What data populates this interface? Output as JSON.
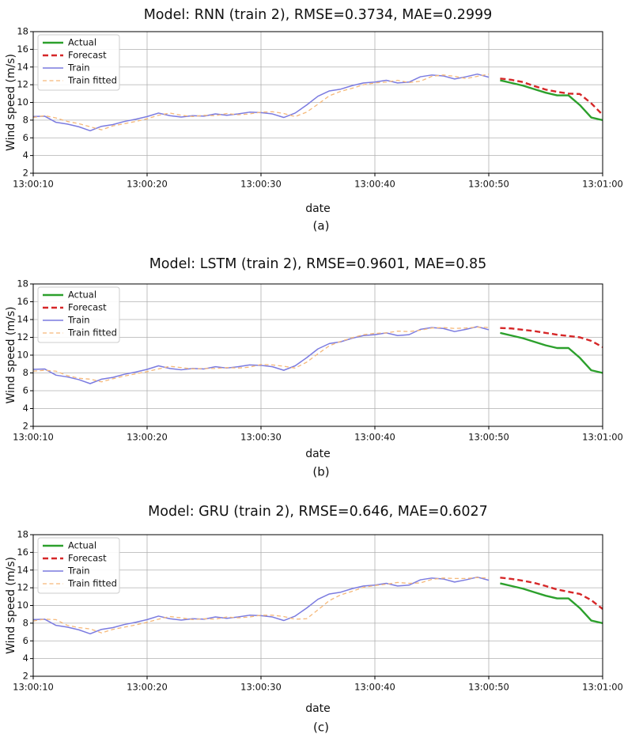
{
  "chart_data": [
    {
      "type": "line",
      "title": "Model: RNN (train 2), RMSE=0.3734, MAE=0.2999",
      "xlabel": "date",
      "ylabel": "Wind speed (m/s)",
      "caption": "(a)",
      "xlim": [
        10,
        60
      ],
      "ylim": [
        2,
        18
      ],
      "xticks": [
        10,
        20,
        30,
        40,
        50,
        60
      ],
      "xtick_labels": [
        "13:00:10",
        "13:00:20",
        "13:00:30",
        "13:00:40",
        "13:00:50",
        "13:01:00"
      ],
      "yticks": [
        2,
        4,
        6,
        8,
        10,
        12,
        14,
        16,
        18
      ],
      "legend_position": "upper-left",
      "series": [
        {
          "name": "Actual",
          "color": "#2ca02c",
          "style": "solid-thick",
          "x": [
            51,
            52,
            53,
            54,
            55,
            56,
            57,
            58,
            59,
            60
          ],
          "y": [
            12.5,
            12.2,
            11.9,
            11.5,
            11.1,
            10.8,
            10.8,
            9.7,
            8.3,
            8.0
          ]
        },
        {
          "name": "Forecast",
          "color": "#d62728",
          "style": "dashed-thick",
          "x": [
            51,
            52,
            53,
            54,
            55,
            56,
            57,
            58,
            59,
            60
          ],
          "y": [
            12.7,
            12.55,
            12.3,
            11.85,
            11.45,
            11.2,
            11.0,
            10.95,
            9.9,
            8.6
          ]
        },
        {
          "name": "Train",
          "color": "#7b7be0",
          "style": "solid-thin",
          "x": [
            10,
            11,
            12,
            13,
            14,
            15,
            16,
            17,
            18,
            19,
            20,
            21,
            22,
            23,
            24,
            25,
            26,
            27,
            28,
            29,
            30,
            31,
            32,
            33,
            34,
            35,
            36,
            37,
            38,
            39,
            40,
            41,
            42,
            43,
            44,
            45,
            46,
            47,
            48,
            49,
            50
          ],
          "y": [
            8.4,
            8.45,
            7.75,
            7.55,
            7.25,
            6.8,
            7.3,
            7.5,
            7.85,
            8.1,
            8.4,
            8.8,
            8.5,
            8.35,
            8.5,
            8.45,
            8.7,
            8.55,
            8.7,
            8.9,
            8.85,
            8.7,
            8.3,
            8.8,
            9.7,
            10.7,
            11.3,
            11.5,
            11.9,
            12.2,
            12.3,
            12.5,
            12.2,
            12.3,
            12.9,
            13.1,
            13.0,
            12.65,
            12.9,
            13.2,
            12.85
          ]
        },
        {
          "name": "Train fitted",
          "color": "#f5b879",
          "style": "dashed-thin",
          "x": [
            10,
            11,
            12,
            13,
            14,
            15,
            16,
            17,
            18,
            19,
            20,
            21,
            22,
            23,
            24,
            25,
            26,
            27,
            28,
            29,
            30,
            31,
            32,
            33,
            34,
            35,
            36,
            37,
            38,
            39,
            40,
            41,
            42,
            43,
            44,
            45,
            46,
            47,
            48,
            49,
            50
          ],
          "y": [
            8.3,
            8.5,
            8.25,
            7.85,
            7.6,
            7.25,
            6.9,
            7.35,
            7.6,
            7.85,
            8.15,
            8.55,
            8.8,
            8.55,
            8.4,
            8.55,
            8.5,
            8.75,
            8.6,
            8.7,
            8.9,
            8.95,
            8.75,
            8.4,
            8.9,
            9.8,
            10.75,
            11.25,
            11.6,
            12.0,
            12.2,
            12.3,
            12.5,
            12.25,
            12.4,
            12.95,
            13.1,
            12.95,
            12.7,
            12.95,
            13.2
          ]
        }
      ]
    },
    {
      "type": "line",
      "title": "Model: LSTM (train 2), RMSE=0.9601, MAE=0.85",
      "xlabel": "date",
      "ylabel": "Wind speed (m/s)",
      "caption": "(b)",
      "xlim": [
        10,
        60
      ],
      "ylim": [
        2,
        18
      ],
      "xticks": [
        10,
        20,
        30,
        40,
        50,
        60
      ],
      "xtick_labels": [
        "13:00:10",
        "13:00:20",
        "13:00:30",
        "13:00:40",
        "13:00:50",
        "13:01:00"
      ],
      "yticks": [
        2,
        4,
        6,
        8,
        10,
        12,
        14,
        16,
        18
      ],
      "legend_position": "upper-left",
      "series": [
        {
          "name": "Actual",
          "color": "#2ca02c",
          "style": "solid-thick",
          "x": [
            51,
            52,
            53,
            54,
            55,
            56,
            57,
            58,
            59,
            60
          ],
          "y": [
            12.5,
            12.2,
            11.9,
            11.5,
            11.1,
            10.8,
            10.8,
            9.7,
            8.3,
            8.0
          ]
        },
        {
          "name": "Forecast",
          "color": "#d62728",
          "style": "dashed-thick",
          "x": [
            51,
            52,
            53,
            54,
            55,
            56,
            57,
            58,
            59,
            60
          ],
          "y": [
            13.05,
            13.0,
            12.85,
            12.7,
            12.5,
            12.3,
            12.15,
            12.0,
            11.6,
            10.9
          ]
        },
        {
          "name": "Train",
          "color": "#7b7be0",
          "style": "solid-thin",
          "x": [
            10,
            11,
            12,
            13,
            14,
            15,
            16,
            17,
            18,
            19,
            20,
            21,
            22,
            23,
            24,
            25,
            26,
            27,
            28,
            29,
            30,
            31,
            32,
            33,
            34,
            35,
            36,
            37,
            38,
            39,
            40,
            41,
            42,
            43,
            44,
            45,
            46,
            47,
            48,
            49,
            50
          ],
          "y": [
            8.4,
            8.45,
            7.75,
            7.55,
            7.25,
            6.8,
            7.3,
            7.5,
            7.85,
            8.1,
            8.4,
            8.8,
            8.5,
            8.35,
            8.5,
            8.45,
            8.7,
            8.55,
            8.7,
            8.9,
            8.85,
            8.7,
            8.3,
            8.8,
            9.7,
            10.7,
            11.3,
            11.5,
            11.9,
            12.2,
            12.3,
            12.5,
            12.2,
            12.3,
            12.9,
            13.1,
            13.0,
            12.65,
            12.9,
            13.2,
            12.85
          ]
        },
        {
          "name": "Train fitted",
          "color": "#f5b879",
          "style": "dashed-thin",
          "x": [
            10,
            11,
            12,
            13,
            14,
            15,
            16,
            17,
            18,
            19,
            20,
            21,
            22,
            23,
            24,
            25,
            26,
            27,
            28,
            29,
            30,
            31,
            32,
            33,
            34,
            35,
            36,
            37,
            38,
            39,
            40,
            41,
            42,
            43,
            44,
            45,
            46,
            47,
            48,
            49,
            50
          ],
          "y": [
            8.2,
            8.3,
            8.2,
            7.7,
            7.4,
            7.3,
            7.0,
            7.35,
            7.65,
            7.9,
            8.15,
            8.45,
            8.75,
            8.6,
            8.45,
            8.5,
            8.5,
            8.6,
            8.55,
            8.65,
            8.95,
            8.9,
            8.75,
            8.55,
            9.2,
            10.15,
            11.05,
            11.55,
            11.95,
            12.3,
            12.45,
            12.5,
            12.7,
            12.65,
            12.8,
            13.05,
            13.1,
            13.0,
            13.05,
            13.15,
            13.1
          ]
        }
      ]
    },
    {
      "type": "line",
      "title": "Model: GRU (train 2), RMSE=0.646, MAE=0.6027",
      "xlabel": "date",
      "ylabel": "Wind speed (m/s)",
      "caption": "(c)",
      "xlim": [
        10,
        60
      ],
      "ylim": [
        2,
        18
      ],
      "xticks": [
        10,
        20,
        30,
        40,
        50,
        60
      ],
      "xtick_labels": [
        "13:00:10",
        "13:00:20",
        "13:00:30",
        "13:00:40",
        "13:00:50",
        "13:01:00"
      ],
      "yticks": [
        2,
        4,
        6,
        8,
        10,
        12,
        14,
        16,
        18
      ],
      "legend_position": "upper-left",
      "series": [
        {
          "name": "Actual",
          "color": "#2ca02c",
          "style": "solid-thick",
          "x": [
            51,
            52,
            53,
            54,
            55,
            56,
            57,
            58,
            59,
            60
          ],
          "y": [
            12.5,
            12.2,
            11.9,
            11.5,
            11.1,
            10.8,
            10.8,
            9.7,
            8.3,
            8.0
          ]
        },
        {
          "name": "Forecast",
          "color": "#d62728",
          "style": "dashed-thick",
          "x": [
            51,
            52,
            53,
            54,
            55,
            56,
            57,
            58,
            59,
            60
          ],
          "y": [
            13.15,
            13.0,
            12.8,
            12.55,
            12.2,
            11.8,
            11.55,
            11.3,
            10.6,
            9.6
          ]
        },
        {
          "name": "Train",
          "color": "#7b7be0",
          "style": "solid-thin",
          "x": [
            10,
            11,
            12,
            13,
            14,
            15,
            16,
            17,
            18,
            19,
            20,
            21,
            22,
            23,
            24,
            25,
            26,
            27,
            28,
            29,
            30,
            31,
            32,
            33,
            34,
            35,
            36,
            37,
            38,
            39,
            40,
            41,
            42,
            43,
            44,
            45,
            46,
            47,
            48,
            49,
            50
          ],
          "y": [
            8.4,
            8.45,
            7.75,
            7.55,
            7.25,
            6.8,
            7.3,
            7.5,
            7.85,
            8.1,
            8.4,
            8.8,
            8.5,
            8.35,
            8.5,
            8.45,
            8.7,
            8.55,
            8.7,
            8.9,
            8.85,
            8.7,
            8.3,
            8.8,
            9.7,
            10.7,
            11.3,
            11.5,
            11.9,
            12.2,
            12.3,
            12.5,
            12.2,
            12.3,
            12.9,
            13.1,
            13.0,
            12.65,
            12.9,
            13.2,
            12.85
          ]
        },
        {
          "name": "Train fitted",
          "color": "#f5b879",
          "style": "dashed-thin",
          "x": [
            10,
            11,
            12,
            13,
            14,
            15,
            16,
            17,
            18,
            19,
            20,
            21,
            22,
            23,
            24,
            25,
            26,
            27,
            28,
            29,
            30,
            31,
            32,
            33,
            34,
            35,
            36,
            37,
            38,
            39,
            40,
            41,
            42,
            43,
            44,
            45,
            46,
            47,
            48,
            49,
            50
          ],
          "y": [
            8.25,
            8.45,
            8.4,
            7.75,
            7.5,
            7.35,
            6.9,
            7.3,
            7.55,
            7.8,
            8.1,
            8.45,
            8.75,
            8.6,
            8.4,
            8.5,
            8.45,
            8.7,
            8.6,
            8.7,
            8.9,
            8.9,
            8.75,
            8.45,
            8.5,
            9.5,
            10.55,
            11.2,
            11.6,
            12.05,
            12.25,
            12.4,
            12.6,
            12.5,
            12.55,
            12.95,
            13.1,
            13.05,
            13.05,
            13.15,
            13.1
          ]
        }
      ]
    }
  ]
}
